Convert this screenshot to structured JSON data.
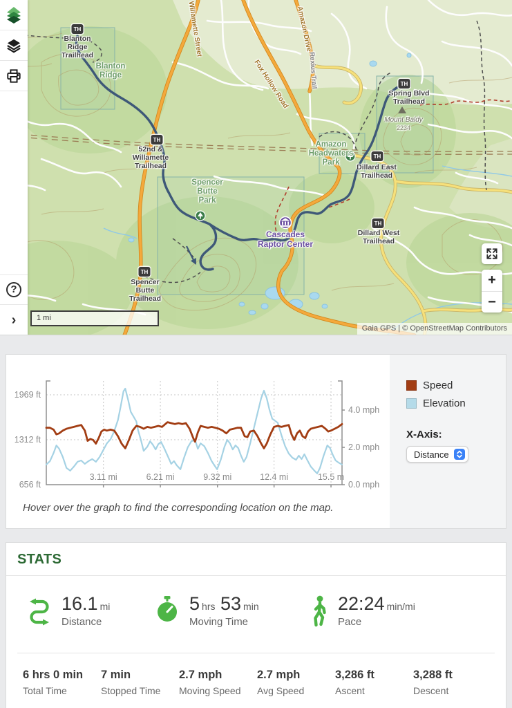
{
  "colors": {
    "accent_green": "#4db546",
    "stats_title_green": "#2d6a35",
    "speed_color": "#a23d13",
    "elevation_color": "#a5d2e4",
    "route_blue": "#3e5878",
    "poi_purple": "#6b4fa1",
    "select_blue": "#3b82f7"
  },
  "map": {
    "th_marker": "TH",
    "scale_label": "1 mi",
    "attribution": "Gaia GPS | © OpenStreetMap Contributors",
    "toolbar": {
      "help_glyph": "?",
      "expand_glyph": "›"
    },
    "controls": {
      "zoom_in": "+",
      "zoom_out": "−"
    },
    "labels": {
      "blanton_ridge_trailhead": "Blanton\nRidge\nTrailhead",
      "blanton_ridge": "Blanton\nRidge",
      "willamette_trailhead": "52nd &\nWillamette\nTrailhead",
      "spencer_butte_park": "Spencer\nButte\nPark",
      "spencer_butte_trailhead": "Spencer\nButte\nTrailhead",
      "cascades_raptor_center": "Cascades\nRaptor Center",
      "amazon_headwaters_park": "Amazon\nHeadwaters\nPark",
      "dillard_east_trailhead": "Dillard East\nTrailhead",
      "dillard_west_trailhead": "Dillard West\nTrailhead",
      "spring_blvd_trailhead": "Spring Blvd\nTrailhead",
      "mount_baldy": "Mount Baldy",
      "mount_baldy_elev": "2234",
      "willamette_street": "Willamette Street",
      "fox_hollow_road": "Fox Hollow Road",
      "amazon_drive": "Amazon Drive",
      "rexius_trail": "Rexius Trail"
    }
  },
  "chart_data": {
    "type": "line",
    "x_range": [
      0,
      16.1
    ],
    "x_ticks": [
      "3.11 mi",
      "6.21 mi",
      "9.32 mi",
      "12.4 mi",
      "15.5 m"
    ],
    "x_tick_values": [
      3.11,
      6.21,
      9.32,
      12.4,
      15.5
    ],
    "left_axis": {
      "ticks": [
        "1969 ft",
        "1312 ft",
        "656 ft"
      ],
      "values": [
        1969,
        1312,
        656
      ],
      "range": [
        656,
        2171
      ]
    },
    "right_axis": {
      "ticks": [
        "4.0 mph",
        "2.0 mph",
        "0.0 mph"
      ],
      "values": [
        4,
        2,
        0
      ],
      "range": [
        0,
        5.56
      ]
    },
    "grid": true,
    "legend_position": "right",
    "series": [
      {
        "name": "Speed",
        "axis": "right",
        "color": "#a23d13",
        "points": [
          [
            0,
            3.05
          ],
          [
            0.2,
            3.05
          ],
          [
            0.4,
            2.95
          ],
          [
            0.55,
            2.7
          ],
          [
            0.7,
            2.75
          ],
          [
            0.9,
            2.9
          ],
          [
            1.1,
            3.0
          ],
          [
            1.3,
            3.05
          ],
          [
            1.5,
            3.1
          ],
          [
            1.7,
            3.15
          ],
          [
            1.9,
            3.2
          ],
          [
            2.1,
            2.9
          ],
          [
            2.25,
            2.35
          ],
          [
            2.4,
            2.45
          ],
          [
            2.55,
            2.4
          ],
          [
            2.7,
            2.2
          ],
          [
            2.85,
            2.5
          ],
          [
            3.0,
            2.85
          ],
          [
            3.15,
            2.95
          ],
          [
            3.3,
            2.9
          ],
          [
            3.5,
            2.95
          ],
          [
            3.7,
            2.9
          ],
          [
            3.9,
            2.6
          ],
          [
            4.1,
            2.2
          ],
          [
            4.3,
            1.95
          ],
          [
            4.5,
            2.4
          ],
          [
            4.7,
            2.9
          ],
          [
            4.9,
            3.15
          ],
          [
            5.1,
            3.1
          ],
          [
            5.3,
            3.0
          ],
          [
            5.5,
            3.1
          ],
          [
            5.7,
            3.05
          ],
          [
            5.9,
            3.1
          ],
          [
            6.1,
            3.15
          ],
          [
            6.3,
            3.1
          ],
          [
            6.6,
            3.35
          ],
          [
            6.8,
            3.3
          ],
          [
            7.0,
            3.25
          ],
          [
            7.2,
            3.3
          ],
          [
            7.4,
            3.25
          ],
          [
            7.6,
            3.3
          ],
          [
            7.8,
            3.0
          ],
          [
            8.0,
            2.5
          ],
          [
            8.1,
            2.3
          ],
          [
            8.25,
            2.8
          ],
          [
            8.4,
            3.15
          ],
          [
            8.6,
            3.1
          ],
          [
            8.8,
            3.05
          ],
          [
            9.0,
            3.1
          ],
          [
            9.2,
            3.05
          ],
          [
            9.4,
            3.0
          ],
          [
            9.6,
            2.9
          ],
          [
            9.8,
            2.75
          ],
          [
            10.0,
            2.95
          ],
          [
            10.2,
            3.0
          ],
          [
            10.4,
            3.05
          ],
          [
            10.6,
            3.05
          ],
          [
            10.8,
            2.6
          ],
          [
            10.95,
            2.55
          ],
          [
            11.1,
            2.85
          ],
          [
            11.3,
            2.9
          ],
          [
            11.5,
            2.6
          ],
          [
            11.7,
            2.2
          ],
          [
            11.85,
            1.95
          ],
          [
            12.0,
            2.2
          ],
          [
            12.2,
            2.7
          ],
          [
            12.4,
            3.1
          ],
          [
            12.6,
            3.15
          ],
          [
            12.8,
            3.1
          ],
          [
            13.0,
            3.15
          ],
          [
            13.2,
            3.2
          ],
          [
            13.35,
            2.7
          ],
          [
            13.5,
            2.4
          ],
          [
            13.65,
            2.75
          ],
          [
            13.8,
            2.9
          ],
          [
            13.95,
            2.6
          ],
          [
            14.1,
            2.5
          ],
          [
            14.25,
            2.85
          ],
          [
            14.4,
            3.0
          ],
          [
            14.6,
            3.05
          ],
          [
            14.8,
            3.1
          ],
          [
            15.0,
            3.15
          ],
          [
            15.2,
            3.0
          ],
          [
            15.35,
            2.85
          ],
          [
            15.5,
            2.9
          ],
          [
            15.7,
            3.0
          ],
          [
            15.9,
            3.1
          ],
          [
            16.1,
            3.25
          ]
        ]
      },
      {
        "name": "Elevation",
        "axis": "left",
        "color": "#a5d2e4",
        "points": [
          [
            0,
            950
          ],
          [
            0.2,
            1000
          ],
          [
            0.4,
            1120
          ],
          [
            0.55,
            1230
          ],
          [
            0.7,
            1180
          ],
          [
            0.9,
            1060
          ],
          [
            1.1,
            900
          ],
          [
            1.3,
            860
          ],
          [
            1.5,
            920
          ],
          [
            1.7,
            990
          ],
          [
            1.9,
            1010
          ],
          [
            2.1,
            960
          ],
          [
            2.3,
            1000
          ],
          [
            2.5,
            1030
          ],
          [
            2.7,
            990
          ],
          [
            2.9,
            1060
          ],
          [
            3.1,
            1160
          ],
          [
            3.3,
            1260
          ],
          [
            3.5,
            1320
          ],
          [
            3.7,
            1440
          ],
          [
            3.9,
            1600
          ],
          [
            4.05,
            1800
          ],
          [
            4.2,
            2020
          ],
          [
            4.3,
            2060
          ],
          [
            4.45,
            1900
          ],
          [
            4.6,
            1720
          ],
          [
            4.75,
            1650
          ],
          [
            4.9,
            1580
          ],
          [
            5.0,
            1450
          ],
          [
            5.15,
            1310
          ],
          [
            5.3,
            1150
          ],
          [
            5.5,
            1210
          ],
          [
            5.65,
            1290
          ],
          [
            5.8,
            1240
          ],
          [
            5.95,
            1170
          ],
          [
            6.1,
            1250
          ],
          [
            6.25,
            1280
          ],
          [
            6.4,
            1200
          ],
          [
            6.6,
            1080
          ],
          [
            6.8,
            960
          ],
          [
            6.95,
            1000
          ],
          [
            7.1,
            940
          ],
          [
            7.3,
            880
          ],
          [
            7.5,
            1050
          ],
          [
            7.7,
            1200
          ],
          [
            7.9,
            1290
          ],
          [
            8.1,
            1310
          ],
          [
            8.25,
            1180
          ],
          [
            8.4,
            1260
          ],
          [
            8.6,
            1220
          ],
          [
            8.8,
            1120
          ],
          [
            9.0,
            1000
          ],
          [
            9.15,
            940
          ],
          [
            9.3,
            880
          ],
          [
            9.5,
            1020
          ],
          [
            9.7,
            1210
          ],
          [
            9.85,
            1310
          ],
          [
            10.0,
            1260
          ],
          [
            10.15,
            1170
          ],
          [
            10.3,
            1230
          ],
          [
            10.45,
            1190
          ],
          [
            10.6,
            1080
          ],
          [
            10.75,
            990
          ],
          [
            10.9,
            1060
          ],
          [
            11.1,
            1260
          ],
          [
            11.3,
            1480
          ],
          [
            11.5,
            1700
          ],
          [
            11.7,
            1920
          ],
          [
            11.85,
            2030
          ],
          [
            12.0,
            1920
          ],
          [
            12.15,
            1750
          ],
          [
            12.3,
            1620
          ],
          [
            12.45,
            1590
          ],
          [
            12.6,
            1560
          ],
          [
            12.8,
            1380
          ],
          [
            13.0,
            1220
          ],
          [
            13.2,
            1110
          ],
          [
            13.4,
            1050
          ],
          [
            13.6,
            1020
          ],
          [
            13.75,
            1080
          ],
          [
            13.9,
            1030
          ],
          [
            14.05,
            1100
          ],
          [
            14.2,
            1020
          ],
          [
            14.4,
            920
          ],
          [
            14.6,
            860
          ],
          [
            14.75,
            820
          ],
          [
            14.9,
            900
          ],
          [
            15.1,
            1080
          ],
          [
            15.3,
            1230
          ],
          [
            15.45,
            1190
          ],
          [
            15.6,
            1090
          ],
          [
            15.75,
            1010
          ],
          [
            15.9,
            980
          ],
          [
            16.1,
            950
          ]
        ]
      }
    ]
  },
  "chart_panel": {
    "legend": [
      {
        "label": "Speed",
        "color": "#a23d13"
      },
      {
        "label": "Elevation",
        "color": "#b5dbe9"
      }
    ],
    "x_axis_title": "X-Axis:",
    "x_axis_value": "Distance",
    "note": "Hover over the graph to find the corresponding location on the map."
  },
  "stats": {
    "title": "STATS",
    "primary": [
      {
        "value": "16.1",
        "unit": "mi",
        "label": "Distance"
      },
      {
        "value": "5",
        "unit": "hrs",
        "value2": "53",
        "unit2": "min",
        "label": "Moving Time"
      },
      {
        "value": "22:24",
        "unit": "min/mi",
        "label": "Pace"
      }
    ],
    "secondary": [
      {
        "value": "6 hrs 0 min",
        "label": "Total Time"
      },
      {
        "value": "7 min",
        "label": "Stopped Time"
      },
      {
        "value": "2.7 mph",
        "label": "Moving Speed"
      },
      {
        "value": "2.7 mph",
        "label": "Avg Speed"
      },
      {
        "value": "3,286 ft",
        "label": "Ascent"
      },
      {
        "value": "3,288 ft",
        "label": "Descent"
      }
    ]
  }
}
